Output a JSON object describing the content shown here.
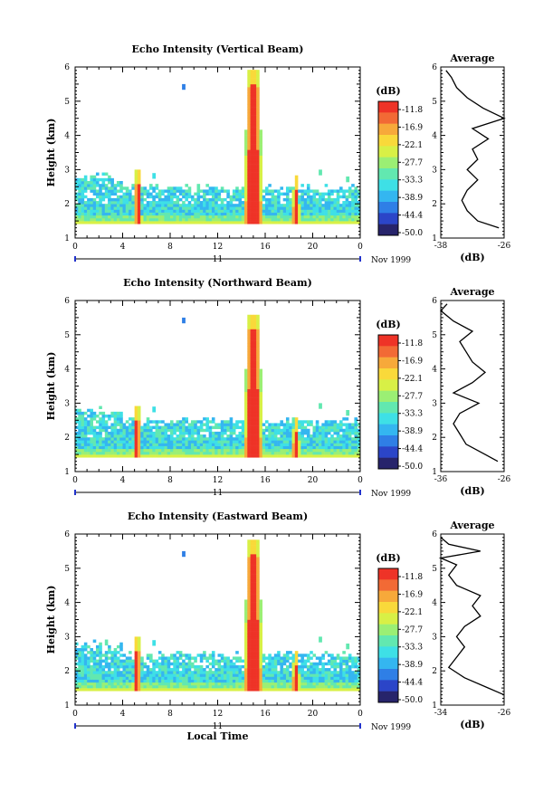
{
  "chart_data": [
    {
      "type": "heatmap",
      "title": "Echo Intensity (Vertical Beam)",
      "ylabel": "Height (km)",
      "xlabel": "",
      "xticks": [
        "0",
        "4",
        "8",
        "12",
        "16",
        "20",
        "0"
      ],
      "yticks": [
        "1",
        "2",
        "3",
        "4",
        "5",
        "6"
      ],
      "day_label": "11",
      "month_label": "Nov 1999",
      "xlim": [
        0,
        24
      ],
      "ylim": [
        1,
        6
      ],
      "colorbar": {
        "unit": "(dB)",
        "labels": [
          "-11.8",
          "-16.9",
          "-22.1",
          "-27.7",
          "-33.3",
          "-38.9",
          "-44.4",
          "-50.0"
        ]
      },
      "features": [
        {
          "time_range": [
            0,
            24
          ],
          "height_range": [
            1.4,
            2.6
          ],
          "level": "background"
        },
        {
          "time_center": 5.3,
          "height_top": 3.0,
          "level": "peak"
        },
        {
          "time_center": 15.0,
          "height_top": 5.9,
          "level": "peak"
        },
        {
          "time_center": 18.6,
          "height_top": 2.8,
          "level": "peak"
        }
      ],
      "profile": {
        "title": "Average",
        "xlabel": "(dB)",
        "xticks": [
          "-38",
          "-26"
        ],
        "xlim": [
          -38,
          -26
        ],
        "heights": [
          1.3,
          1.5,
          1.8,
          2.1,
          2.4,
          2.7,
          3.0,
          3.3,
          3.6,
          3.9,
          4.2,
          4.5,
          4.8,
          5.1,
          5.4,
          5.7,
          5.9
        ],
        "values": [
          -27,
          -31,
          -33,
          -34,
          -33,
          -31,
          -33,
          -31,
          -32,
          -29,
          -32,
          -26,
          -30,
          -33,
          -35,
          -36,
          -37
        ]
      }
    },
    {
      "type": "heatmap",
      "title": "Echo Intensity (Northward Beam)",
      "ylabel": "Height (km)",
      "xlabel": "",
      "xticks": [
        "0",
        "4",
        "8",
        "12",
        "16",
        "20",
        "0"
      ],
      "yticks": [
        "1",
        "2",
        "3",
        "4",
        "5",
        "6"
      ],
      "day_label": "11",
      "month_label": "Nov 1999",
      "xlim": [
        0,
        24
      ],
      "ylim": [
        1,
        6
      ],
      "colorbar": {
        "unit": "(dB)",
        "labels": [
          "-11.8",
          "-16.9",
          "-22.1",
          "-27.7",
          "-33.3",
          "-38.9",
          "-44.4",
          "-50.0"
        ]
      },
      "features": [
        {
          "time_range": [
            0,
            24
          ],
          "height_range": [
            1.4,
            2.6
          ],
          "level": "background"
        },
        {
          "time_center": 5.2,
          "height_top": 2.9,
          "level": "peak"
        },
        {
          "time_center": 15.0,
          "height_top": 5.6,
          "level": "peak"
        },
        {
          "time_center": 18.6,
          "height_top": 2.6,
          "level": "peak"
        }
      ],
      "profile": {
        "title": "Average",
        "xlabel": "(dB)",
        "xticks": [
          "-36",
          "-26"
        ],
        "xlim": [
          -36,
          -26
        ],
        "heights": [
          1.3,
          1.5,
          1.8,
          2.1,
          2.4,
          2.7,
          3.0,
          3.3,
          3.6,
          3.9,
          4.2,
          4.5,
          4.8,
          5.1,
          5.4,
          5.7,
          5.9
        ],
        "values": [
          -27,
          -29,
          -32,
          -33,
          -34,
          -33,
          -30,
          -34,
          -31,
          -29,
          -31,
          -32,
          -33,
          -31,
          -34,
          -36,
          -35
        ]
      }
    },
    {
      "type": "heatmap",
      "title": "Echo Intensity (Eastward Beam)",
      "ylabel": "Height (km)",
      "xlabel": "Local Time",
      "xticks": [
        "0",
        "4",
        "8",
        "12",
        "16",
        "20",
        "0"
      ],
      "yticks": [
        "1",
        "2",
        "3",
        "4",
        "5",
        "6"
      ],
      "day_label": "11",
      "month_label": "Nov 1999",
      "xlim": [
        0,
        24
      ],
      "ylim": [
        1,
        6
      ],
      "colorbar": {
        "unit": "(dB)",
        "labels": [
          "-11.8",
          "-16.9",
          "-22.1",
          "-27.7",
          "-33.3",
          "-38.9",
          "-44.4",
          "-50.0"
        ]
      },
      "features": [
        {
          "time_range": [
            0,
            24
          ],
          "height_range": [
            1.4,
            2.6
          ],
          "level": "background"
        },
        {
          "time_center": 5.2,
          "height_top": 3.0,
          "level": "peak"
        },
        {
          "time_center": 15.0,
          "height_top": 5.8,
          "level": "peak"
        },
        {
          "time_center": 18.6,
          "height_top": 2.6,
          "level": "peak"
        }
      ],
      "profile": {
        "title": "Average",
        "xlabel": "(dB)",
        "xticks": [
          "-34",
          "-26"
        ],
        "xlim": [
          -34,
          -26
        ],
        "heights": [
          1.3,
          1.5,
          1.8,
          2.1,
          2.4,
          2.7,
          3.0,
          3.3,
          3.6,
          3.9,
          4.2,
          4.5,
          4.8,
          5.1,
          5.3,
          5.5,
          5.7,
          5.9
        ],
        "values": [
          -26,
          -28,
          -31,
          -33,
          -32,
          -31,
          -32,
          -31,
          -29,
          -30,
          -29,
          -32,
          -33,
          -32,
          -34,
          -29,
          -33,
          -34
        ]
      }
    }
  ],
  "colors": {
    "colormap": [
      "#27246b",
      "#2b45c8",
      "#2f7fe6",
      "#34b6f0",
      "#3ee0e6",
      "#62e8b0",
      "#9bef74",
      "#d8f046",
      "#f9d93a",
      "#f7a93a",
      "#f26a35",
      "#ee3327"
    ]
  }
}
